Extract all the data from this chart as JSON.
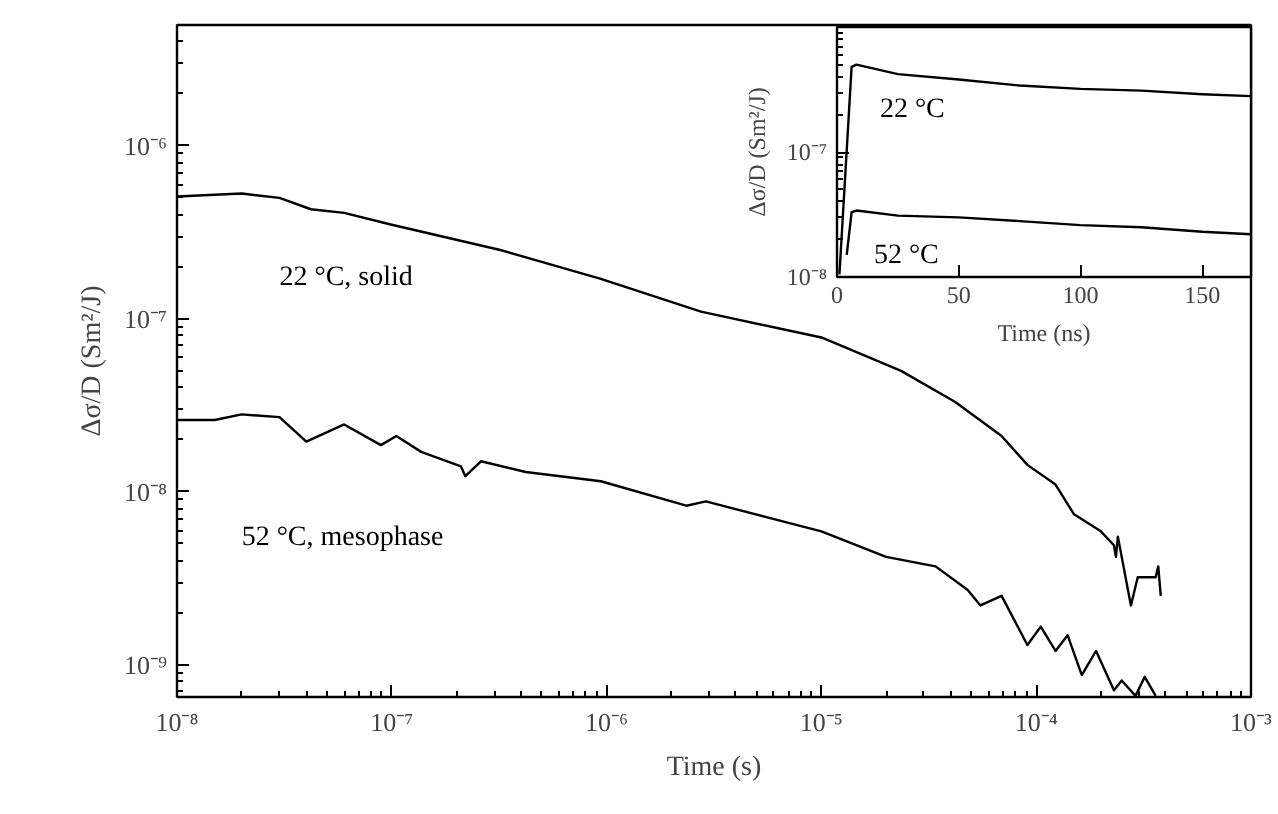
{
  "chart_data": [
    {
      "type": "line",
      "log": "xy",
      "grid": false,
      "xlabel": "Time (s)",
      "ylabel": "Δσ/D (Sm²/J)",
      "xlim": [
        1e-08,
        0.001
      ],
      "ylim": [
        6.5e-10,
        5e-06
      ],
      "xticks": [
        {
          "value": 1e-08,
          "label": "10⁻⁸"
        },
        {
          "value": 1e-07,
          "label": "10⁻⁷"
        },
        {
          "value": 1e-06,
          "label": "10⁻⁶"
        },
        {
          "value": 1e-05,
          "label": "10⁻⁵"
        },
        {
          "value": 0.0001,
          "label": "10⁻⁴"
        },
        {
          "value": 0.001,
          "label": "10⁻³"
        }
      ],
      "yticks": [
        {
          "value": 1e-09,
          "label": "10⁻⁹"
        },
        {
          "value": 1e-08,
          "label": "10⁻⁸"
        },
        {
          "value": 1e-07,
          "label": "10⁻⁷"
        },
        {
          "value": 1e-06,
          "label": "10⁻⁶"
        }
      ],
      "series": [
        {
          "name": "22 °C, solid",
          "color": "#000000",
          "x": [
            1e-08,
            2e-08,
            3e-08,
            4.2e-08,
            6e-08,
            1e-07,
            3.2e-07,
            9.4e-07,
            2.75e-06,
            1e-05,
            2.35e-05,
            4.2e-05,
            6.9e-05,
            9.1e-05,
            0.000123,
            0.00015,
            0.0002,
            0.00023,
            0.000235,
            0.00024,
            0.000276,
            0.000297,
            0.00036,
            0.00037,
            0.00038
          ],
          "values": [
            5.1e-07,
            5.3e-07,
            5e-07,
            4.3e-07,
            4.1e-07,
            3.5e-07,
            2.5e-07,
            1.7e-07,
            1.1e-07,
            7.8e-08,
            5e-08,
            3.3e-08,
            2.1e-08,
            1.43e-08,
            1.1e-08,
            7.4e-09,
            5.9e-09,
            4.9e-09,
            4.2e-09,
            5.5e-09,
            2.2e-09,
            3.2e-09,
            3.2e-09,
            3.7e-09,
            2.5e-09
          ]
        },
        {
          "name": "52 °C, mesophase",
          "color": "#000000",
          "x": [
            1e-08,
            1.5e-08,
            2e-08,
            3e-08,
            4e-08,
            6e-08,
            8.9e-08,
            1.05e-07,
            1.37e-07,
            2.1e-07,
            2.2e-07,
            2.6e-07,
            4.2e-07,
            9.4e-07,
            2.35e-06,
            2.9e-06,
            5.6e-06,
            1e-05,
            2e-05,
            3.4e-05,
            4.8e-05,
            5.5e-05,
            6.9e-05,
            9.1e-05,
            0.000105,
            0.000123,
            0.00014,
            0.000163,
            0.00019,
            0.00023,
            0.00025,
            0.00029,
            0.00032,
            0.00036
          ],
          "values": [
            2.6e-08,
            2.6e-08,
            2.8e-08,
            2.7e-08,
            1.95e-08,
            2.45e-08,
            1.86e-08,
            2.1e-08,
            1.7e-08,
            1.4e-08,
            1.23e-08,
            1.5e-08,
            1.3e-08,
            1.15e-08,
            8.3e-09,
            8.8e-09,
            7.1e-09,
            5.9e-09,
            4.2e-09,
            3.7e-09,
            2.7e-09,
            2.2e-09,
            2.5e-09,
            1.3e-09,
            1.66e-09,
            1.2e-09,
            1.48e-09,
            8.7e-10,
            1.2e-09,
            7.1e-10,
            8.1e-10,
            6.6e-10,
            8.5e-10,
            6.6e-10
          ]
        }
      ]
    },
    {
      "type": "line",
      "log": "y",
      "grid": false,
      "xlabel": "Time (ns)",
      "ylabel": "Δσ/D (Sm²/J)",
      "xlim": [
        0,
        170
      ],
      "ylim": [
        1e-08,
        1e-06
      ],
      "xticks": [
        0,
        50,
        100,
        150
      ],
      "yticks": [
        {
          "value": 1e-08,
          "label": "10⁻⁸"
        },
        {
          "value": 1e-07,
          "label": "10⁻⁷"
        },
        {
          "value": 1e-06,
          "label": null
        }
      ],
      "series": [
        {
          "name": "22 °C",
          "color": "#000000",
          "x": [
            1,
            6,
            8,
            25,
            50,
            75,
            100,
            125,
            150,
            170
          ],
          "values": [
            1.05e-08,
            4.8e-07,
            5e-07,
            4.2e-07,
            3.8e-07,
            3.4e-07,
            3.2e-07,
            3.1e-07,
            2.9e-07,
            2.8e-07
          ]
        },
        {
          "name": "52 °C",
          "color": "#000000",
          "x": [
            4,
            6,
            8,
            25,
            50,
            75,
            100,
            125,
            150,
            170
          ],
          "values": [
            1.5e-08,
            3.3e-08,
            3.4e-08,
            3.1e-08,
            3e-08,
            2.8e-08,
            2.6e-08,
            2.5e-08,
            2.3e-08,
            2.2e-08
          ]
        }
      ]
    }
  ]
}
